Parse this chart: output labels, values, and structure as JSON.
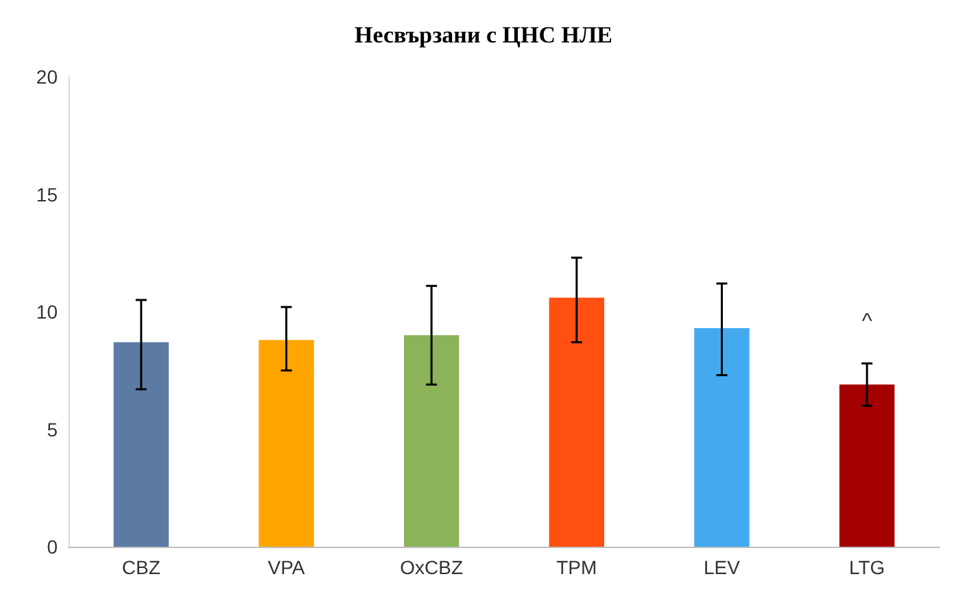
{
  "chart_data": {
    "type": "bar",
    "title": "Несвързани с ЦНС НЛЕ",
    "categories": [
      "CBZ",
      "VPA",
      "OxCBZ",
      "TPM",
      "LEV",
      "LTG"
    ],
    "values": [
      8.7,
      8.8,
      9.0,
      10.6,
      9.3,
      6.9
    ],
    "colors": [
      "#5b7ba3",
      "#ffa500",
      "#8ab35a",
      "#ff5011",
      "#43aaf0",
      "#a50000"
    ],
    "errors": [
      [
        6.7,
        10.5
      ],
      [
        7.5,
        10.2
      ],
      [
        6.9,
        11.1
      ],
      [
        8.7,
        12.3
      ],
      [
        7.3,
        11.2
      ],
      [
        6.0,
        7.8
      ]
    ],
    "ylim": [
      0,
      20
    ],
    "yticks": [
      0,
      5,
      10,
      15,
      20
    ],
    "grid": false,
    "annotations": [
      "^"
    ]
  }
}
